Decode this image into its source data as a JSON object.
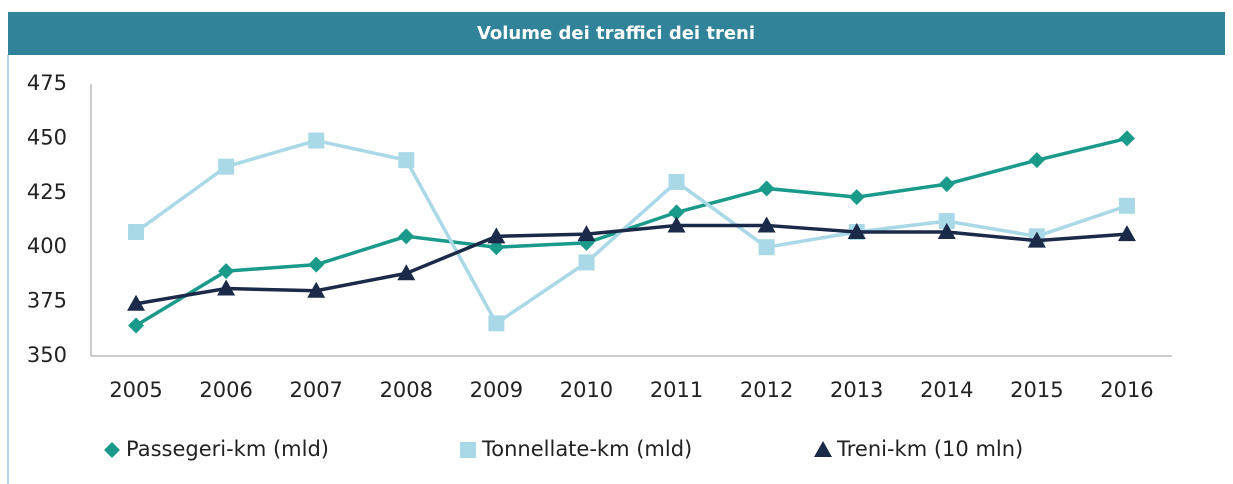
{
  "chart_data": {
    "type": "line",
    "title": "Volume dei traffici dei treni",
    "categories": [
      "2005",
      "2006",
      "2007",
      "2008",
      "2009",
      "2010",
      "2011",
      "2012",
      "2013",
      "2014",
      "2015",
      "2016"
    ],
    "series": [
      {
        "name": "Passegeri-km (mld)",
        "color": "#1a9a8a",
        "marker": "diamond",
        "values": [
          364,
          389,
          392,
          405,
          400,
          402,
          416,
          427,
          423,
          429,
          440,
          450
        ]
      },
      {
        "name": "Tonnellate-km (mld)",
        "color": "#a9d8e6",
        "marker": "square",
        "values": [
          407,
          437,
          449,
          440,
          365,
          393,
          430,
          400,
          407,
          412,
          405,
          419
        ]
      },
      {
        "name": "Treni-km (10 mln)",
        "color": "#1b2a48",
        "marker": "triangle",
        "values": [
          374,
          381,
          380,
          388,
          405,
          406,
          410,
          410,
          407,
          407,
          403,
          406
        ]
      }
    ],
    "ylim": [
      350,
      475
    ],
    "yticks": [
      350,
      375,
      400,
      425,
      450,
      475
    ],
    "grid": false,
    "legend": "bottom"
  }
}
